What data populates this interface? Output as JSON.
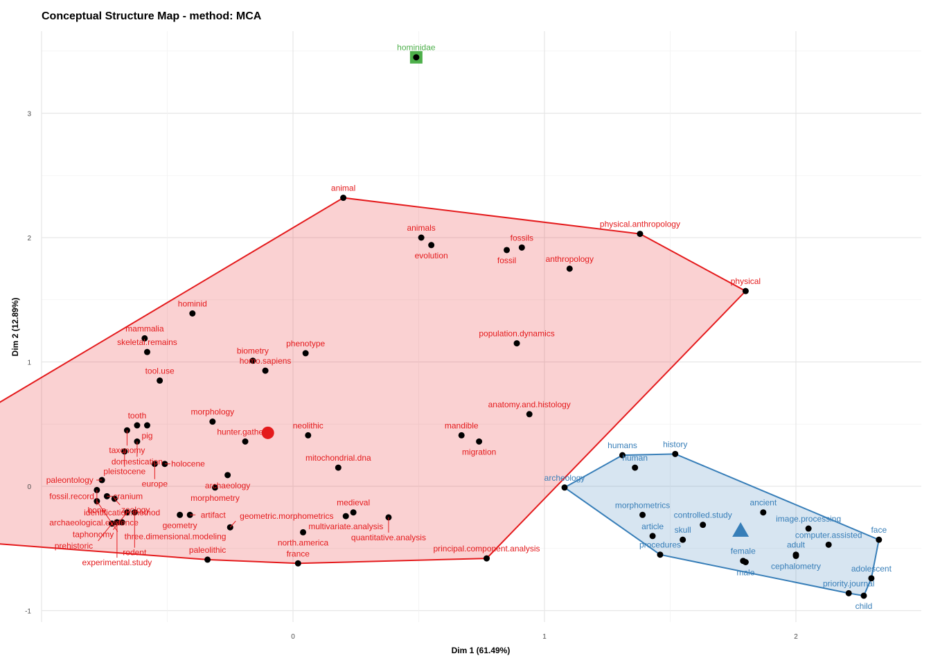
{
  "chart_data": {
    "type": "scatter",
    "title": "Conceptual Structure Map - method: MCA",
    "xlabel": "Dim 1 (61.49%)",
    "ylabel": "Dim 2 (12.89%)",
    "xlim": [
      -1.0,
      2.5
    ],
    "ylim": [
      -1.1,
      3.65
    ],
    "xticks": [
      0,
      1,
      2
    ],
    "yticks": [
      -1,
      0,
      1,
      2,
      3
    ],
    "grid": true,
    "legend": "none",
    "clusters": [
      {
        "id": 1,
        "color": "#E41A1C",
        "centroid": {
          "x": -0.1,
          "y": 0.43,
          "shape": "circle"
        },
        "points": [
          {
            "label": "animal",
            "x": 0.2,
            "y": 2.32
          },
          {
            "label": "physical.anthropology",
            "x": 1.38,
            "y": 2.03
          },
          {
            "label": "physical",
            "x": 1.8,
            "y": 1.57
          },
          {
            "label": "principal.component.analysis",
            "x": 0.77,
            "y": -0.58
          },
          {
            "label": "france",
            "x": 0.02,
            "y": -0.62
          },
          {
            "label": "paleolithic",
            "x": -0.34,
            "y": -0.59
          },
          {
            "label": "archaeological.evidence",
            "x": -1.78,
            "y": -0.37
          },
          {
            "label": "fossil.record",
            "x": -1.86,
            "y": -0.16
          },
          {
            "label": "mammalia",
            "x": -0.59,
            "y": 1.19
          },
          {
            "label": "animals",
            "x": 0.51,
            "y": 2.0
          },
          {
            "label": "evolution",
            "x": 0.55,
            "y": 1.94
          },
          {
            "label": "fossils",
            "x": 0.91,
            "y": 1.92
          },
          {
            "label": "fossil",
            "x": 0.85,
            "y": 1.9
          },
          {
            "label": "anthropology",
            "x": 1.1,
            "y": 1.75
          },
          {
            "label": "hominid",
            "x": -0.4,
            "y": 1.39
          },
          {
            "label": "population.dynamics",
            "x": 0.89,
            "y": 1.15
          },
          {
            "label": "skeletal.remains",
            "x": -0.58,
            "y": 1.08
          },
          {
            "label": "phenotype",
            "x": 0.05,
            "y": 1.07
          },
          {
            "label": "biometry",
            "x": -0.16,
            "y": 1.01
          },
          {
            "label": "homo.sapiens",
            "x": -0.11,
            "y": 0.93
          },
          {
            "label": "tool.use",
            "x": -0.53,
            "y": 0.85
          },
          {
            "label": "anatomy.and.histology",
            "x": 0.94,
            "y": 0.58
          },
          {
            "label": "morphology",
            "x": -0.32,
            "y": 0.52
          },
          {
            "label": "tooth",
            "x": -0.62,
            "y": 0.49
          },
          {
            "label": "pig",
            "x": -0.58,
            "y": 0.49
          },
          {
            "label": "taxonomy",
            "x": -0.66,
            "y": 0.45
          },
          {
            "label": "neolithic",
            "x": 0.06,
            "y": 0.41
          },
          {
            "label": "mandible",
            "x": 0.67,
            "y": 0.41
          },
          {
            "label": "domestication",
            "x": -0.62,
            "y": 0.36
          },
          {
            "label": "hunter.gatherer",
            "x": -0.19,
            "y": 0.36
          },
          {
            "label": "migration",
            "x": 0.74,
            "y": 0.36
          },
          {
            "label": "pleistocene",
            "x": -0.67,
            "y": 0.28
          },
          {
            "label": "europe",
            "x": -0.55,
            "y": 0.18
          },
          {
            "label": "holocene",
            "x": -0.51,
            "y": 0.18
          },
          {
            "label": "mitochondrial.dna",
            "x": 0.18,
            "y": 0.15
          },
          {
            "label": "archaeology",
            "x": -0.26,
            "y": 0.09
          },
          {
            "label": "paleontology",
            "x": -0.76,
            "y": 0.05
          },
          {
            "label": "bone",
            "x": -0.78,
            "y": -0.03
          },
          {
            "label": "morphometry",
            "x": -0.31,
            "y": -0.01
          },
          {
            "label": "cranium",
            "x": -0.74,
            "y": -0.08
          },
          {
            "label": "zoology",
            "x": -0.71,
            "y": -0.1
          },
          {
            "label": "three.dimensional.modeling",
            "x": -0.78,
            "y": -0.12
          },
          {
            "label": "taphonomy",
            "x": -0.66,
            "y": -0.21
          },
          {
            "label": "rodent",
            "x": -0.63,
            "y": -0.21
          },
          {
            "label": "medieval",
            "x": 0.24,
            "y": -0.21
          },
          {
            "label": "geometry",
            "x": -0.45,
            "y": -0.23
          },
          {
            "label": "artifact",
            "x": -0.41,
            "y": -0.23
          },
          {
            "label": "multivariate.analysis",
            "x": 0.21,
            "y": -0.24
          },
          {
            "label": "quantitative.analysis",
            "x": 0.38,
            "y": -0.25
          },
          {
            "label": "experimental.study",
            "x": -0.7,
            "y": -0.29
          },
          {
            "label": "identification.method",
            "x": -0.68,
            "y": -0.29
          },
          {
            "label": "prehistoric",
            "x": -0.72,
            "y": -0.3
          },
          {
            "label": "geometric.morphometrics",
            "x": -0.25,
            "y": -0.33
          },
          {
            "label": "north.america",
            "x": 0.04,
            "y": -0.37
          }
        ]
      },
      {
        "id": 2,
        "color": "#377EB8",
        "centroid": {
          "x": 1.78,
          "y": -0.35,
          "shape": "triangle"
        },
        "points": [
          {
            "label": "history",
            "x": 1.52,
            "y": 0.26
          },
          {
            "label": "humans",
            "x": 1.31,
            "y": 0.25
          },
          {
            "label": "human",
            "x": 1.36,
            "y": 0.15
          },
          {
            "label": "archeology",
            "x": 1.08,
            "y": -0.01
          },
          {
            "label": "ancient",
            "x": 1.87,
            "y": -0.21
          },
          {
            "label": "morphometrics",
            "x": 1.39,
            "y": -0.23
          },
          {
            "label": "controlled.study",
            "x": 1.63,
            "y": -0.31
          },
          {
            "label": "image.processing",
            "x": 2.05,
            "y": -0.34
          },
          {
            "label": "article",
            "x": 1.43,
            "y": -0.4
          },
          {
            "label": "skull",
            "x": 1.55,
            "y": -0.43
          },
          {
            "label": "face",
            "x": 2.33,
            "y": -0.43
          },
          {
            "label": "computer.assisted",
            "x": 2.13,
            "y": -0.47
          },
          {
            "label": "procedures",
            "x": 1.46,
            "y": -0.55
          },
          {
            "label": "adult",
            "x": 2.0,
            "y": -0.55
          },
          {
            "label": "female",
            "x": 1.79,
            "y": -0.6
          },
          {
            "label": "male",
            "x": 1.8,
            "y": -0.61
          },
          {
            "label": "cephalometry",
            "x": 2.0,
            "y": -0.56
          },
          {
            "label": "adolescent",
            "x": 2.3,
            "y": -0.74
          },
          {
            "label": "priority.journal",
            "x": 2.21,
            "y": -0.86
          },
          {
            "label": "child",
            "x": 2.27,
            "y": -0.88
          }
        ]
      },
      {
        "id": 3,
        "color": "#4DAF4A",
        "centroid": {
          "x": 0.49,
          "y": 3.45,
          "shape": "square"
        },
        "points": [
          {
            "label": "hominidae",
            "x": 0.49,
            "y": 3.45
          }
        ]
      }
    ]
  }
}
